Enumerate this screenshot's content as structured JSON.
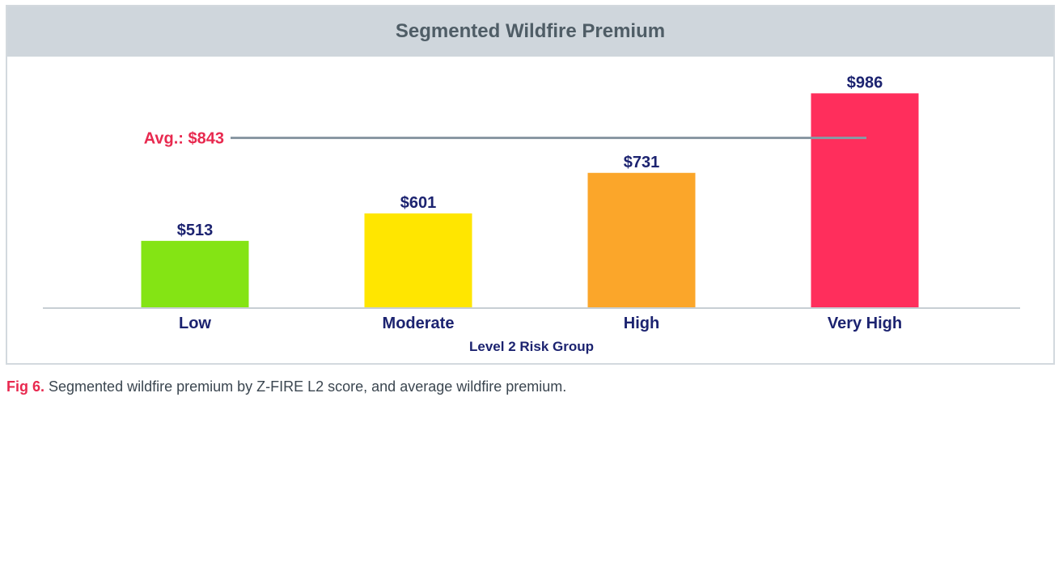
{
  "chart_data": {
    "type": "bar",
    "title": "Segmented Wildfire Premium",
    "categories": [
      "Low",
      "Moderate",
      "High",
      "Very High"
    ],
    "values": [
      513,
      601,
      731,
      986
    ],
    "value_labels": [
      "$513",
      "$601",
      "$731",
      "$986"
    ],
    "bar_colors": [
      "#84e414",
      "#ffe600",
      "#fba62a",
      "#ff2e5c"
    ],
    "xlabel": "Level 2 Risk Group",
    "ylabel": "",
    "ylim": [
      300,
      1000
    ],
    "average": {
      "value": 843,
      "label": "Avg.: $843"
    },
    "label_color": "#1c2370",
    "average_label_color": "#e8294f",
    "average_line_color": "#8a98a3",
    "axis_color": "#c7ced4"
  },
  "caption": {
    "fig_label": "Fig 6.",
    "text": " Segmented wildfire premium by Z-FIRE L2 score, and average wildfire premium."
  }
}
